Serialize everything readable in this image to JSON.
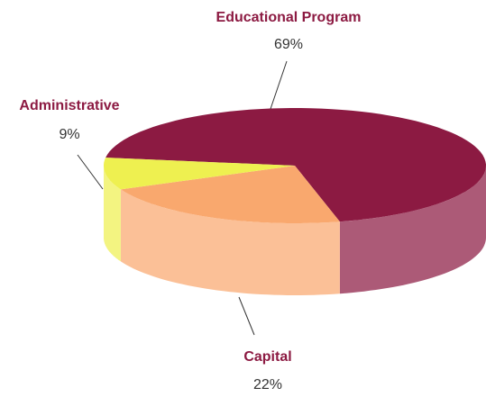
{
  "chart_data": {
    "type": "pie3d",
    "categories": [
      "Educational Program",
      "Capital",
      "Administrative"
    ],
    "values": [
      69,
      22,
      9
    ],
    "value_labels": [
      "69%",
      "22%",
      "9%"
    ],
    "colors": [
      "#8c1a42",
      "#f9a86e",
      "#eef050"
    ]
  }
}
